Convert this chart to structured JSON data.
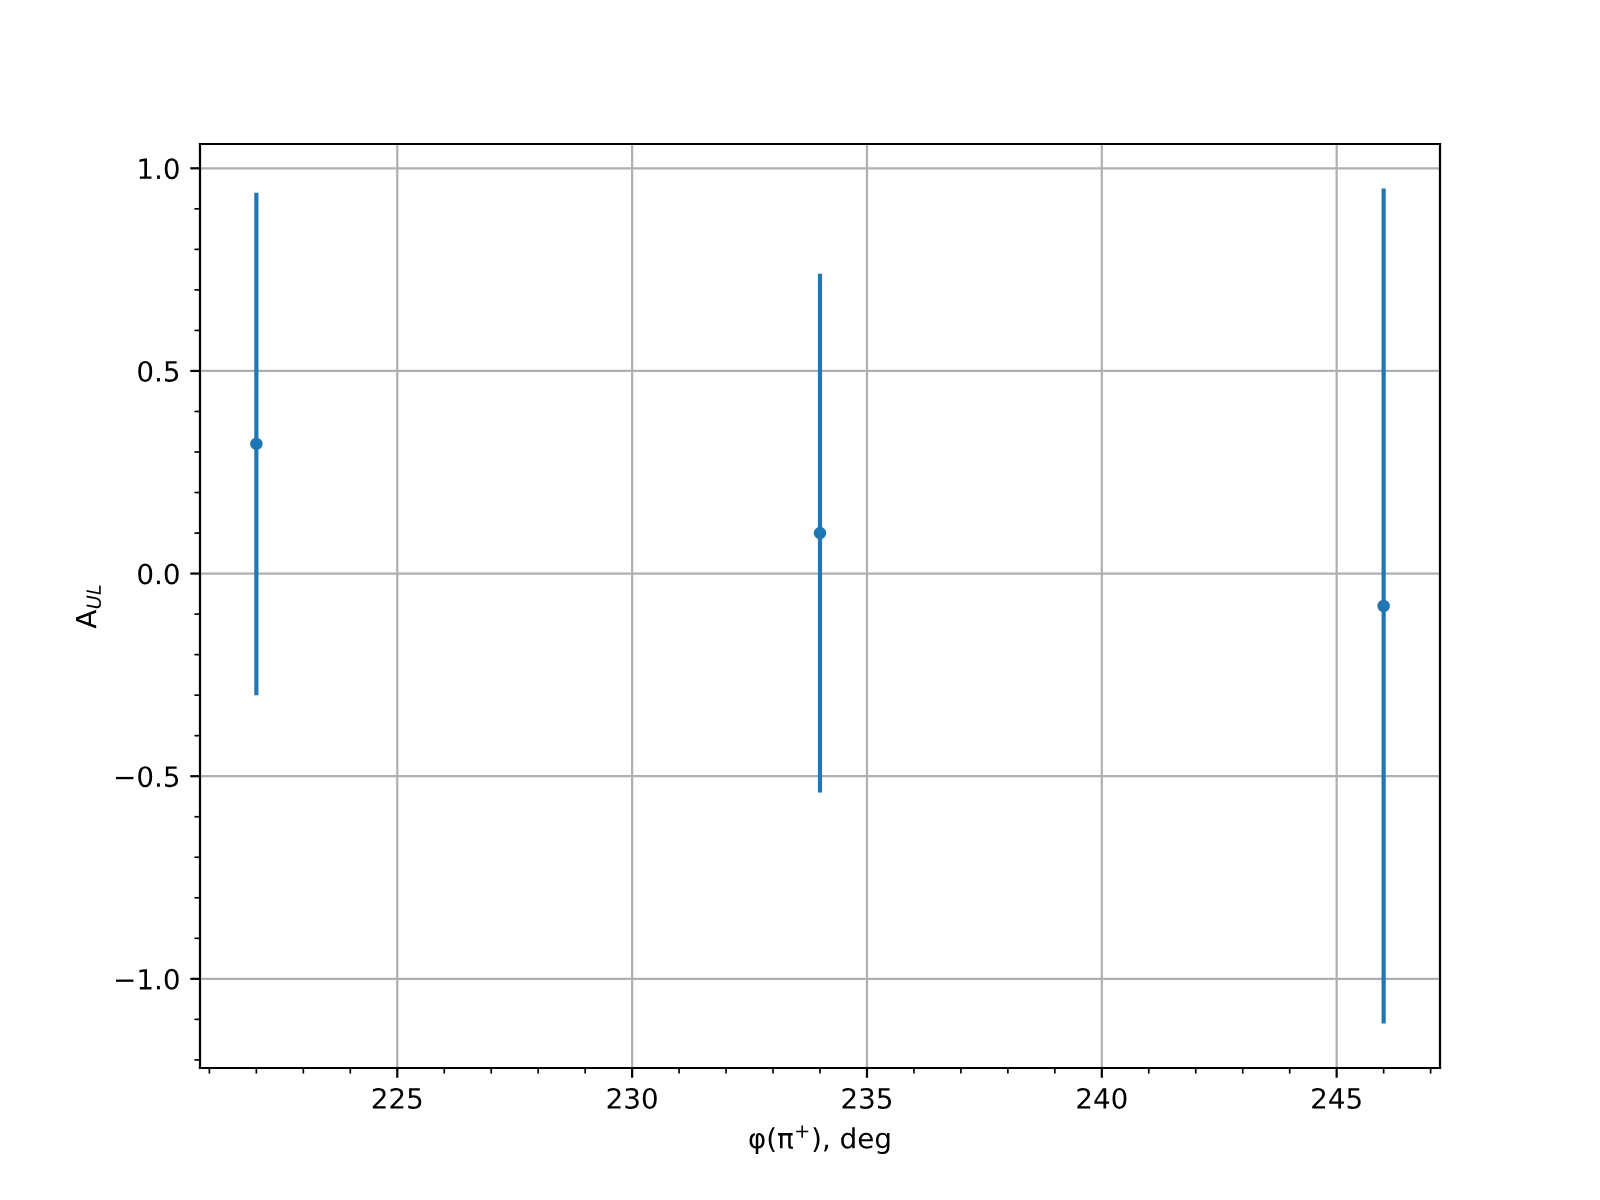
{
  "chart_data": {
    "type": "scatter",
    "xlabel": "φ(π$^{+}$), deg",
    "ylabel": "A$_{UL}$",
    "x": [
      222,
      234,
      246
    ],
    "series": [
      {
        "color": "#1f77b4",
        "values": [
          0.32,
          0.1,
          -0.08
        ],
        "errors": [
          0.62,
          0.64,
          1.03
        ]
      }
    ],
    "xlim": [
      220.8,
      247.2
    ],
    "ylim": [
      -1.22,
      1.06
    ],
    "xticks": [
      225,
      230,
      235,
      240,
      245
    ],
    "yticks": [
      {
        "value": -1,
        "label": "−1.0"
      },
      {
        "value": -0.5,
        "label": "−0.5"
      },
      {
        "value": 0,
        "label": "0.0"
      },
      {
        "value": 0.5,
        "label": "0.5"
      },
      {
        "value": 1,
        "label": "1.0"
      }
    ],
    "grid": true,
    "marker": "circle"
  }
}
